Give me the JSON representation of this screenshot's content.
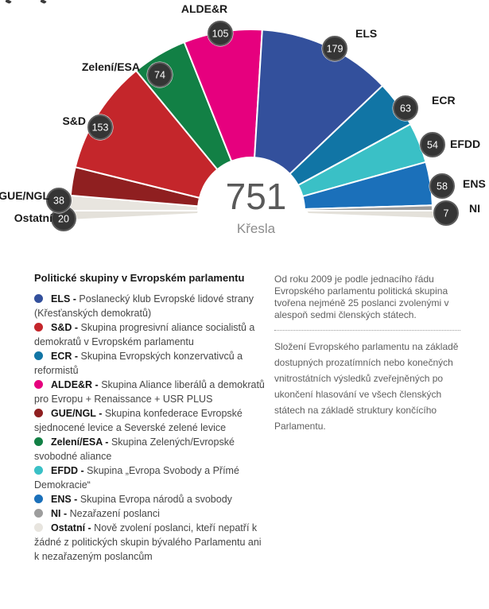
{
  "chart_data": {
    "type": "hemicycle",
    "total_seats": 751,
    "center_value": "751",
    "center_label": "Křesla",
    "segments": [
      {
        "abbr": "Ostatní",
        "seats": 20,
        "color": "#e8e5df"
      },
      {
        "abbr": "GUE/NGL",
        "seats": 38,
        "color": "#8f1f20"
      },
      {
        "abbr": "S&D",
        "seats": 153,
        "color": "#c4262b"
      },
      {
        "abbr": "Zelení/ESA",
        "seats": 74,
        "color": "#128045"
      },
      {
        "abbr": "ALDE&R",
        "seats": 105,
        "color": "#e6007e"
      },
      {
        "abbr": "ELS",
        "seats": 179,
        "color": "#33509c"
      },
      {
        "abbr": "ECR",
        "seats": 63,
        "color": "#1175a5"
      },
      {
        "abbr": "EFDD",
        "seats": 54,
        "color": "#3ac0c6"
      },
      {
        "abbr": "ENS",
        "seats": 58,
        "color": "#1b70ba"
      },
      {
        "abbr": "NI",
        "seats": 7,
        "color": "#9d9d9d"
      }
    ]
  },
  "legend": {
    "heading": "Politické skupiny v Evropském parlamentu",
    "separator": "-",
    "items": [
      {
        "abbr": "ELS",
        "color": "#33509c",
        "description": "Poslanecký klub Evropské lidové strany (Křesťanských demokratů)"
      },
      {
        "abbr": "S&D",
        "color": "#c4262b",
        "description": "Skupina progresivní aliance socialistů a demokratů v Evropském parlamentu"
      },
      {
        "abbr": "ECR",
        "color": "#1175a5",
        "description": "Skupina Evropských konzervativců a reformistů"
      },
      {
        "abbr": "ALDE&R",
        "color": "#e6007e",
        "description": "Skupina Aliance liberálů a demokratů pro Evropu + Renaissance + USR PLUS"
      },
      {
        "abbr": "GUE/NGL",
        "color": "#8f1f20",
        "description": "Skupina konfederace Evropské sjednocené levice a Severské zelené levice"
      },
      {
        "abbr": "Zelení/ESA",
        "color": "#128045",
        "description": "Skupina Zelených/Evropské svobodné aliance"
      },
      {
        "abbr": "EFDD",
        "color": "#3ac0c6",
        "description": "Skupina „Evropa Svobody a Přímé Demokracie“"
      },
      {
        "abbr": "ENS",
        "color": "#1b70ba",
        "description": "Skupina Evropa národů a svobody"
      },
      {
        "abbr": "NI",
        "color": "#9d9d9d",
        "description": "Nezařazení poslanci"
      },
      {
        "abbr": "Ostatní",
        "color": "#e8e5df",
        "description": "Nově zvolení poslanci, kteří nepatří k žádné z politických skupin bývalého Parlamentu ani k nezařazeným poslancům"
      }
    ]
  },
  "notes": {
    "paragraph1": "Od roku 2009 je podle jednacího řádu Evropského parlamentu politická skupina tvořena nejméně 25 poslanci zvolenými v alespoň sedmi členských státech.",
    "paragraph2": "Složení Evropského parlamentu na základě dostupných prozatímních nebo konečných vnitrostátních výsledků zveřejněných po ukončení hlasování ve všech členských státech na základě struktury končícího Parlamentu."
  }
}
